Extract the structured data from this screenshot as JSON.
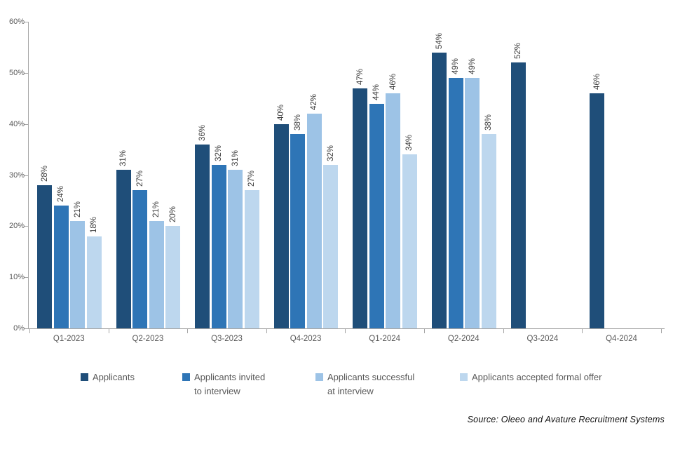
{
  "chart_data": {
    "type": "bar",
    "title": "",
    "categories": [
      "Q1-2023",
      "Q2-2023",
      "Q3-2023",
      "Q4-2023",
      "Q1-2024",
      "Q2-2024",
      "Q3-2024",
      "Q4-2024"
    ],
    "series": [
      {
        "name": "Applicants",
        "color": "#1F4E79",
        "values": [
          28,
          31,
          36,
          40,
          47,
          54,
          52,
          46
        ]
      },
      {
        "name": "Applicants invited to interview",
        "color": "#2E75B6",
        "values": [
          24,
          27,
          32,
          38,
          44,
          49,
          null,
          null
        ]
      },
      {
        "name": "Applicants successful at interview",
        "color": "#9DC3E6",
        "values": [
          21,
          21,
          31,
          42,
          46,
          49,
          null,
          null
        ]
      },
      {
        "name": "Applicants accepted formal offer",
        "color": "#BDD7EE",
        "values": [
          18,
          20,
          27,
          32,
          34,
          38,
          null,
          null
        ]
      }
    ],
    "value_suffix": "%",
    "data_label_rotation_deg": -90,
    "ylim": [
      0,
      60
    ],
    "ytick_labels": [
      "0%",
      "10%",
      "20%",
      "30%",
      "40%",
      "50%",
      "60%"
    ],
    "grid": false,
    "legend_position": "bottom",
    "axis_color": "#A6A6A6",
    "tick_label_color": "#595959",
    "data_label_color": "#404040"
  },
  "legend": {
    "items": [
      {
        "label": "Applicants"
      },
      {
        "label": "Applicants invited\nto interview"
      },
      {
        "label": "Applicants successful\nat interview"
      },
      {
        "label": "Applicants accepted formal offer"
      }
    ]
  },
  "source_note": "Source: Oleeo and Avature Recruitment Systems"
}
